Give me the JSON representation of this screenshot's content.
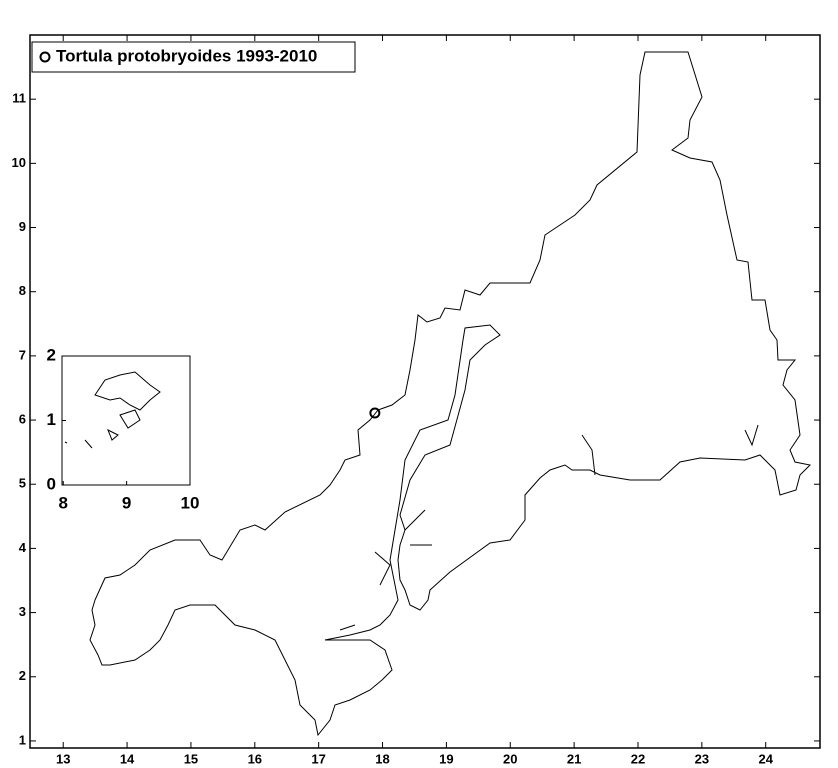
{
  "chart_data": {
    "type": "scatter",
    "series": [
      {
        "name": "Tortula protobryoides 1993-2010",
        "color": "#000000",
        "x": [
          17.88
        ],
        "y": [
          6.11
        ]
      }
    ],
    "xlim": [
      12.48,
      24.85
    ],
    "ylim": [
      0.89,
      12.0
    ],
    "xticks": [
      13,
      14,
      15,
      16,
      17,
      18,
      19,
      20,
      21,
      22,
      23,
      24
    ],
    "yticks": [
      1,
      2,
      3,
      4,
      5,
      6,
      7,
      8,
      9,
      10,
      11
    ],
    "legend": "upper left",
    "inset": {
      "xlim": [
        7.98,
        10.0
      ],
      "ylim": [
        0,
        2
      ],
      "xticks": [
        8,
        9,
        10
      ],
      "yticks": [
        0,
        1,
        2
      ]
    }
  }
}
